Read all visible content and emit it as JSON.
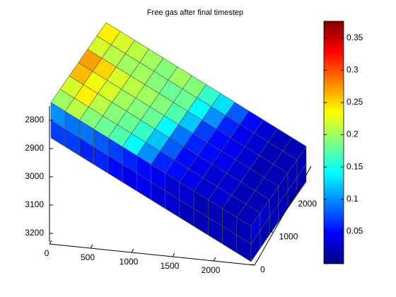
{
  "chart_data": {
    "type": "grid3d",
    "title": "Free gas after final timestep",
    "colormap": "jet",
    "clim": [
      0,
      0.376
    ],
    "cticks": [
      0.05,
      0.1,
      0.15,
      0.2,
      0.25,
      0.3,
      0.35
    ],
    "xlim": [
      0,
      2500
    ],
    "xticks": [
      0,
      500,
      1000,
      1500,
      2000
    ],
    "ylim": [
      0,
      3000
    ],
    "yticks": [
      0,
      1000,
      2000
    ],
    "zlim": [
      2750,
      3230
    ],
    "zticks": [
      2800,
      2900,
      3000,
      3100,
      3200
    ],
    "edge_color": "#555555",
    "top": {
      "values": [
        [
          0.2,
          0.21,
          0.19,
          0.18,
          0.17,
          0.14,
          0.1,
          0.06,
          0.05,
          0.04,
          0.03,
          0.03,
          0.02,
          0.02
        ],
        [
          0.22,
          0.24,
          0.21,
          0.19,
          0.18,
          0.16,
          0.12,
          0.08,
          0.05,
          0.04,
          0.03,
          0.03,
          0.02,
          0.02
        ],
        [
          0.26,
          0.23,
          0.22,
          0.2,
          0.19,
          0.18,
          0.14,
          0.09,
          0.06,
          0.05,
          0.04,
          0.03,
          0.02,
          0.02
        ],
        [
          0.27,
          0.25,
          0.22,
          0.21,
          0.2,
          0.19,
          0.17,
          0.12,
          0.07,
          0.05,
          0.04,
          0.03,
          0.02,
          0.02
        ],
        [
          0.22,
          0.21,
          0.2,
          0.2,
          0.19,
          0.18,
          0.18,
          0.14,
          0.1,
          0.06,
          0.04,
          0.03,
          0.02,
          0.02
        ],
        [
          0.24,
          0.22,
          0.21,
          0.2,
          0.19,
          0.2,
          0.19,
          0.16,
          0.13,
          0.08,
          0.05,
          0.03,
          0.02,
          0.02
        ]
      ]
    },
    "front": {
      "values": [
        [
          0.1,
          0.09,
          0.09,
          0.08,
          0.07,
          0.06,
          0.05,
          0.04,
          0.03,
          0.03,
          0.02,
          0.02,
          0.02,
          0.02
        ],
        [
          0.07,
          0.07,
          0.06,
          0.06,
          0.05,
          0.04,
          0.04,
          0.03,
          0.03,
          0.02,
          0.02,
          0.02,
          0.02,
          0.02
        ]
      ]
    },
    "side": {
      "values": [
        [
          0.03,
          0.03,
          0.02,
          0.02,
          0.02,
          0.02
        ],
        [
          0.02,
          0.02,
          0.02,
          0.02,
          0.02,
          0.02
        ]
      ]
    }
  }
}
